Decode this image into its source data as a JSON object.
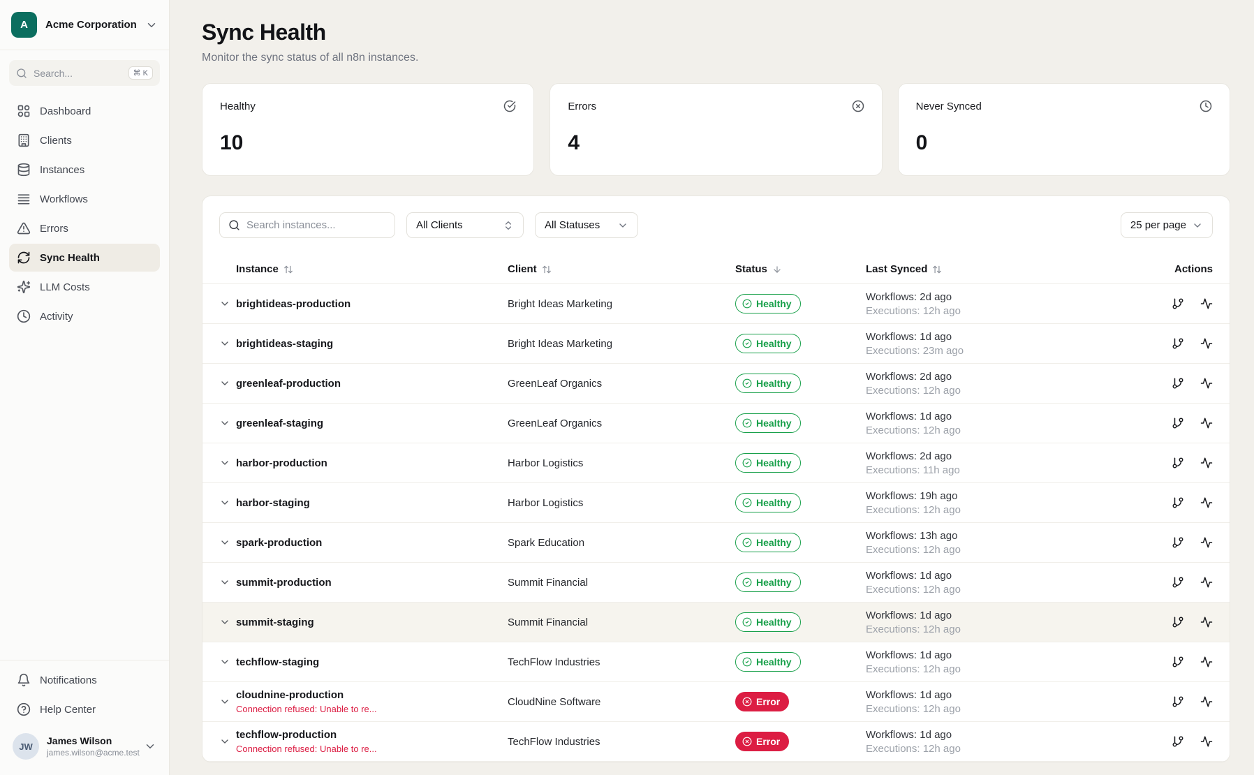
{
  "colors": {
    "teal": "#0B6E5F",
    "green": "#18A04A",
    "red": "#DC1D43",
    "page_bg": "#F2F0EB"
  },
  "brand": {
    "org_initial": "A",
    "org_name": "Acme Corporation"
  },
  "sidebar": {
    "search": {
      "placeholder": "Search...",
      "shortcut": "⌘ K"
    },
    "items": [
      {
        "label": "Dashboard",
        "icon": "layout-grid",
        "active": false
      },
      {
        "label": "Clients",
        "icon": "building",
        "active": false
      },
      {
        "label": "Instances",
        "icon": "database",
        "active": false
      },
      {
        "label": "Workflows",
        "icon": "rows",
        "active": false
      },
      {
        "label": "Errors",
        "icon": "triangle-alert",
        "active": false
      },
      {
        "label": "Sync Health",
        "icon": "refresh",
        "active": true
      },
      {
        "label": "LLM Costs",
        "icon": "sparkles",
        "active": false
      },
      {
        "label": "Activity",
        "icon": "clock",
        "active": false
      }
    ],
    "footer_items": [
      {
        "label": "Notifications",
        "icon": "bell"
      },
      {
        "label": "Help Center",
        "icon": "help-circle"
      }
    ],
    "user": {
      "initials": "JW",
      "name": "James Wilson",
      "email": "james.wilson@acme.test"
    }
  },
  "header": {
    "title": "Sync Health",
    "subtitle": "Monitor the sync status of all n8n instances."
  },
  "summary_cards": [
    {
      "label": "Healthy",
      "value": "10",
      "icon": "circle-check-big"
    },
    {
      "label": "Errors",
      "value": "4",
      "icon": "circle-x"
    },
    {
      "label": "Never Synced",
      "value": "0",
      "icon": "clock"
    }
  ],
  "filters": {
    "search_placeholder": "Search instances...",
    "client_filter": "All Clients",
    "status_filter": "All Statuses",
    "page_size": "25 per page"
  },
  "table": {
    "columns": [
      {
        "label": "Instance",
        "sort": "both"
      },
      {
        "label": "Client",
        "sort": "both"
      },
      {
        "label": "Status",
        "sort": "desc"
      },
      {
        "label": "Last Synced",
        "sort": "both"
      },
      {
        "label": "Actions",
        "sort": "none"
      }
    ],
    "rows": [
      {
        "instance": "brightideas-production",
        "client": "Bright Ideas Marketing",
        "status": "Healthy",
        "workflows": "Workflows: 2d ago",
        "executions": "Executions: 12h ago"
      },
      {
        "instance": "brightideas-staging",
        "client": "Bright Ideas Marketing",
        "status": "Healthy",
        "workflows": "Workflows: 1d ago",
        "executions": "Executions: 23m ago"
      },
      {
        "instance": "greenleaf-production",
        "client": "GreenLeaf Organics",
        "status": "Healthy",
        "workflows": "Workflows: 2d ago",
        "executions": "Executions: 12h ago"
      },
      {
        "instance": "greenleaf-staging",
        "client": "GreenLeaf Organics",
        "status": "Healthy",
        "workflows": "Workflows: 1d ago",
        "executions": "Executions: 12h ago"
      },
      {
        "instance": "harbor-production",
        "client": "Harbor Logistics",
        "status": "Healthy",
        "workflows": "Workflows: 2d ago",
        "executions": "Executions: 11h ago"
      },
      {
        "instance": "harbor-staging",
        "client": "Harbor Logistics",
        "status": "Healthy",
        "workflows": "Workflows: 19h ago",
        "executions": "Executions: 12h ago"
      },
      {
        "instance": "spark-production",
        "client": "Spark Education",
        "status": "Healthy",
        "workflows": "Workflows: 13h ago",
        "executions": "Executions: 12h ago"
      },
      {
        "instance": "summit-production",
        "client": "Summit Financial",
        "status": "Healthy",
        "workflows": "Workflows: 1d ago",
        "executions": "Executions: 12h ago"
      },
      {
        "instance": "summit-staging",
        "client": "Summit Financial",
        "status": "Healthy",
        "workflows": "Workflows: 1d ago",
        "executions": "Executions: 12h ago",
        "highlighted": true
      },
      {
        "instance": "techflow-staging",
        "client": "TechFlow Industries",
        "status": "Healthy",
        "workflows": "Workflows: 1d ago",
        "executions": "Executions: 12h ago"
      },
      {
        "instance": "cloudnine-production",
        "client": "CloudNine Software",
        "status": "Error",
        "workflows": "Workflows: 1d ago",
        "executions": "Executions: 12h ago",
        "error_message": "Connection refused: Unable to re..."
      },
      {
        "instance": "techflow-production",
        "client": "TechFlow Industries",
        "status": "Error",
        "workflows": "Workflows: 1d ago",
        "executions": "Executions: 12h ago",
        "error_message": "Connection refused: Unable to re..."
      }
    ]
  }
}
